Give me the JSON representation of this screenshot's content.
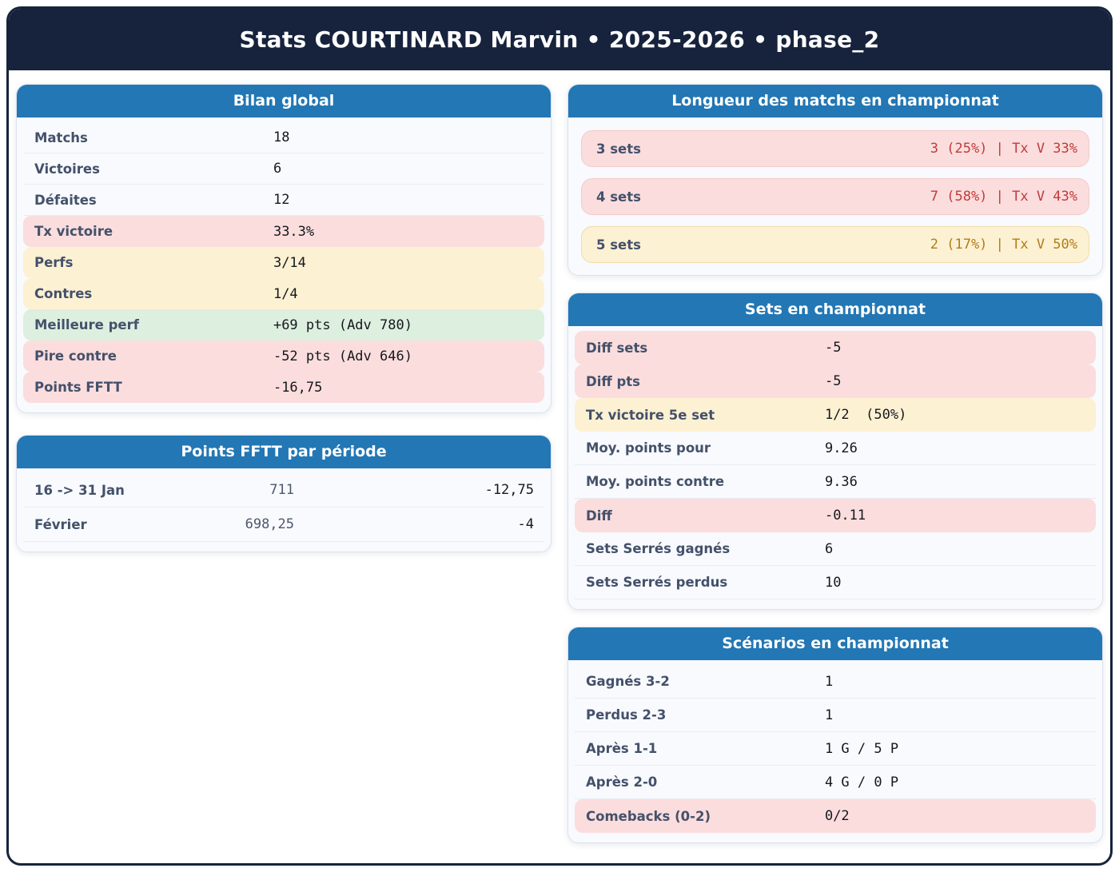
{
  "page": {
    "title": "Stats COURTINARD Marvin • 2025-2026 • phase_2"
  },
  "colors": {
    "frame_navy": "#17233d",
    "card_header_blue": "#2277b4",
    "highlight_pink": "#fbdddd",
    "highlight_yellow": "#fdf1d3",
    "highlight_green": "#ddefdf",
    "text_red": "#c13b3b",
    "text_orange": "#b07d1a",
    "label_slate": "#44516b"
  },
  "bilan_global": {
    "title": "Bilan global",
    "rows": [
      {
        "label": "Matchs",
        "value": "18",
        "highlight": "none"
      },
      {
        "label": "Victoires",
        "value": "6",
        "highlight": "none"
      },
      {
        "label": "Défaites",
        "value": "12",
        "highlight": "none"
      },
      {
        "label": "Tx victoire",
        "value": "33.3%",
        "highlight": "pink"
      },
      {
        "label": "Perfs",
        "value": "3/14",
        "highlight": "yellow"
      },
      {
        "label": "Contres",
        "value": "1/4",
        "highlight": "yellow"
      },
      {
        "label": "Meilleure perf",
        "value": "+69 pts (Adv 780)",
        "highlight": "green"
      },
      {
        "label": "Pire contre",
        "value": "-52 pts (Adv 646)",
        "highlight": "pink"
      },
      {
        "label": "Points FFTT",
        "value": "-16,75",
        "highlight": "pink"
      }
    ]
  },
  "points_periode": {
    "title": "Points FFTT par période",
    "rows": [
      {
        "label": "16 -> 31 Jan",
        "points": "711",
        "delta": "-12,75"
      },
      {
        "label": "Février",
        "points": "698,25",
        "delta": "-4"
      }
    ]
  },
  "longueur_matchs": {
    "title": "Longueur des matchs en championnat",
    "rows": [
      {
        "label": "3 sets",
        "value": "3 (25%) | Tx V 33%",
        "tone": "red",
        "highlight": "pink"
      },
      {
        "label": "4 sets",
        "value": "7 (58%) | Tx V 43%",
        "tone": "red",
        "highlight": "pink"
      },
      {
        "label": "5 sets",
        "value": "2 (17%) | Tx V 50%",
        "tone": "orange",
        "highlight": "yellow"
      }
    ]
  },
  "sets_championnat": {
    "title": "Sets en championnat",
    "rows": [
      {
        "label": "Diff sets",
        "value": "-5",
        "highlight": "pink"
      },
      {
        "label": "Diff pts",
        "value": "-5",
        "highlight": "pink"
      },
      {
        "label": "Tx victoire 5e set",
        "value": "1/2  (50%)",
        "highlight": "yellow"
      },
      {
        "label": "Moy. points pour",
        "value": "9.26",
        "highlight": "none"
      },
      {
        "label": "Moy. points contre",
        "value": "9.36",
        "highlight": "none"
      },
      {
        "label": "Diff",
        "value": "-0.11",
        "highlight": "pink"
      },
      {
        "label": "Sets Serrés gagnés",
        "value": "6",
        "highlight": "none"
      },
      {
        "label": "Sets Serrés perdus",
        "value": "10",
        "highlight": "none"
      }
    ]
  },
  "scenarios": {
    "title": "Scénarios en championnat",
    "rows": [
      {
        "label": "Gagnés 3-2",
        "value": "1",
        "highlight": "none"
      },
      {
        "label": "Perdus 2-3",
        "value": "1",
        "highlight": "none"
      },
      {
        "label": "Après 1-1",
        "value": "1 G / 5 P",
        "highlight": "none"
      },
      {
        "label": "Après 2-0",
        "value": "4 G / 0 P",
        "highlight": "none"
      },
      {
        "label": "Comebacks (0-2)",
        "value": "0/2",
        "highlight": "pink"
      }
    ]
  }
}
